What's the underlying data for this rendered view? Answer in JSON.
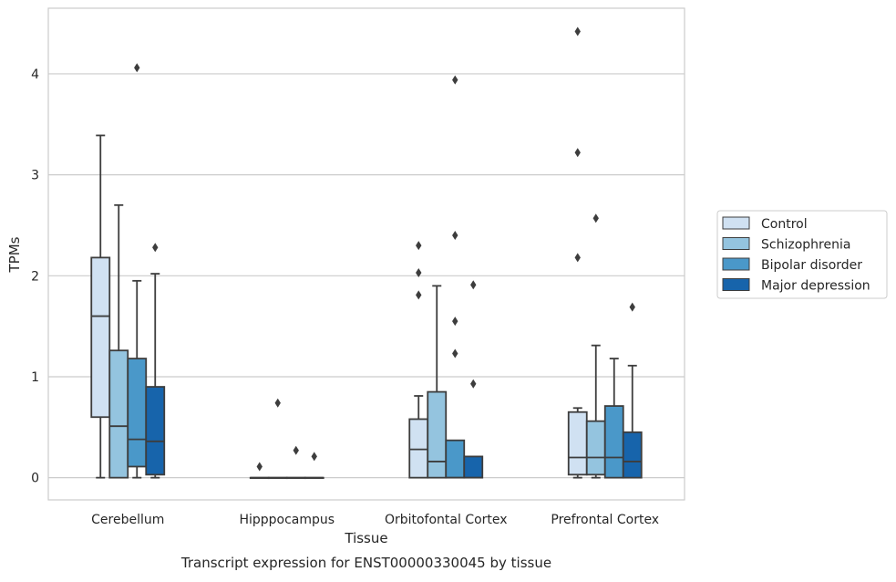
{
  "chart_data": {
    "type": "box",
    "title": "",
    "caption": "Transcript expression for ENST00000330045 by tissue",
    "xlabel": "Tissue",
    "ylabel": "TPMs",
    "ylim": [
      -0.22,
      4.65
    ],
    "yticks": [
      "0",
      "1",
      "2",
      "3",
      "4"
    ],
    "ytick_values": [
      0,
      1,
      2,
      3,
      4
    ],
    "grid": "horizontal",
    "legend_position": "right",
    "categories": [
      "Cerebellum",
      "Hipppocampus",
      "Orbitofontal Cortex",
      "Prefrontal Cortex"
    ],
    "series": [
      {
        "name": "Control",
        "color": "#d0e1f2",
        "boxes": [
          {
            "whislo": 0.0,
            "q1": 0.6,
            "med": 1.6,
            "q3": 2.18,
            "whishi": 3.39,
            "fliers": []
          },
          {
            "whislo": 0.0,
            "q1": 0.0,
            "med": 0.0,
            "q3": 0.0,
            "whishi": 0.0,
            "fliers": [
              0.11
            ]
          },
          {
            "whislo": 0.0,
            "q1": 0.0,
            "med": 0.28,
            "q3": 0.58,
            "whishi": 0.81,
            "fliers": [
              1.81,
              2.03,
              2.3
            ]
          },
          {
            "whislo": 0.0,
            "q1": 0.03,
            "med": 0.2,
            "q3": 0.65,
            "whishi": 0.69,
            "fliers": [
              2.18,
              3.22,
              4.42
            ]
          }
        ]
      },
      {
        "name": "Schizophrenia",
        "color": "#94c4df",
        "boxes": [
          {
            "whislo": 0.0,
            "q1": 0.0,
            "med": 0.51,
            "q3": 1.26,
            "whishi": 2.7,
            "fliers": []
          },
          {
            "whislo": 0.0,
            "q1": 0.0,
            "med": 0.0,
            "q3": 0.0,
            "whishi": 0.0,
            "fliers": [
              0.74
            ]
          },
          {
            "whislo": 0.0,
            "q1": 0.0,
            "med": 0.16,
            "q3": 0.85,
            "whishi": 1.9,
            "fliers": []
          },
          {
            "whislo": 0.0,
            "q1": 0.03,
            "med": 0.2,
            "q3": 0.56,
            "whishi": 1.31,
            "fliers": [
              2.57
            ]
          }
        ]
      },
      {
        "name": "Bipolar disorder",
        "color": "#4a98c9",
        "boxes": [
          {
            "whislo": 0.0,
            "q1": 0.11,
            "med": 0.38,
            "q3": 1.18,
            "whishi": 1.95,
            "fliers": [
              4.06
            ]
          },
          {
            "whislo": 0.0,
            "q1": 0.0,
            "med": 0.0,
            "q3": 0.0,
            "whishi": 0.0,
            "fliers": [
              0.27
            ]
          },
          {
            "whislo": 0.0,
            "q1": 0.0,
            "med": 0.0,
            "q3": 0.37,
            "whishi": 0.37,
            "fliers": [
              1.23,
              1.55,
              2.4,
              3.94
            ]
          },
          {
            "whislo": 0.0,
            "q1": 0.0,
            "med": 0.2,
            "q3": 0.71,
            "whishi": 1.18,
            "fliers": []
          }
        ]
      },
      {
        "name": "Major depression",
        "color": "#1764ab",
        "boxes": [
          {
            "whislo": 0.0,
            "q1": 0.03,
            "med": 0.36,
            "q3": 0.9,
            "whishi": 2.02,
            "fliers": [
              2.28
            ]
          },
          {
            "whislo": 0.0,
            "q1": 0.0,
            "med": 0.0,
            "q3": 0.0,
            "whishi": 0.0,
            "fliers": [
              0.21
            ]
          },
          {
            "whislo": 0.0,
            "q1": 0.0,
            "med": 0.0,
            "q3": 0.21,
            "whishi": 0.21,
            "fliers": [
              0.93,
              1.91
            ]
          },
          {
            "whislo": 0.0,
            "q1": 0.0,
            "med": 0.16,
            "q3": 0.45,
            "whishi": 1.11,
            "fliers": [
              1.69
            ]
          }
        ]
      }
    ]
  }
}
